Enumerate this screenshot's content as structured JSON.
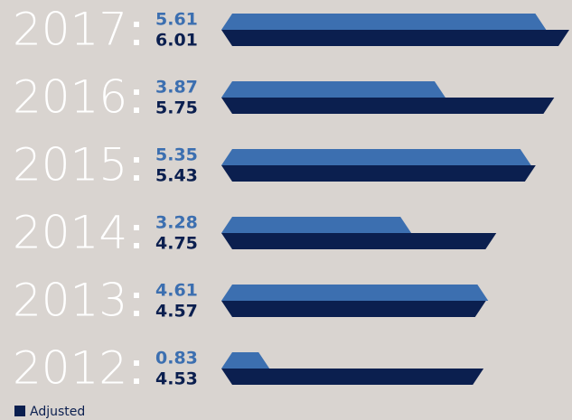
{
  "chart_data": {
    "type": "bar",
    "categories": [
      "2017",
      "2016",
      "2015",
      "2014",
      "2013",
      "2012"
    ],
    "series": [
      {
        "color": "#3c6fb0",
        "values": [
          5.61,
          3.87,
          5.35,
          3.28,
          4.61,
          0.83
        ]
      },
      {
        "name": "Adjusted",
        "color": "#0b1f4f",
        "values": [
          6.01,
          5.75,
          5.43,
          4.75,
          4.57,
          4.53
        ]
      }
    ],
    "legend": "bottom-left"
  }
}
